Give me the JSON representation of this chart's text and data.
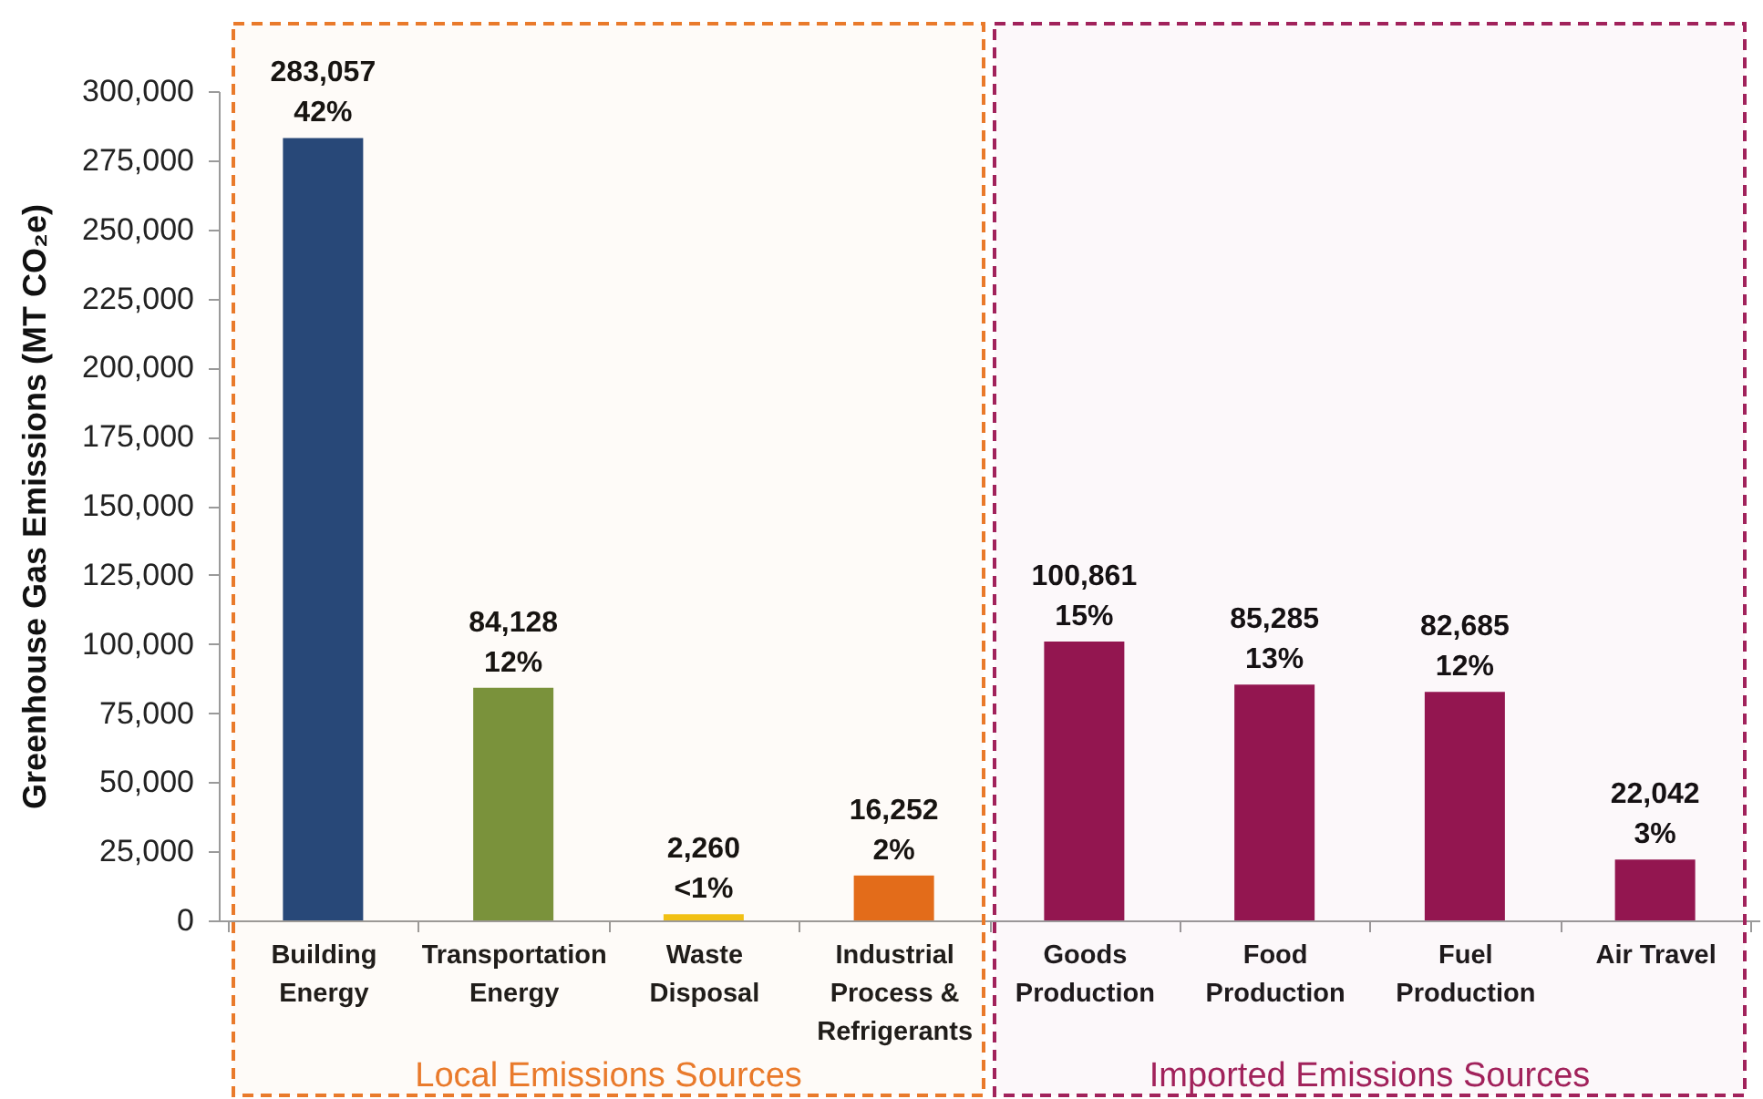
{
  "chart_data": {
    "type": "bar",
    "ylabel": "Greenhouse Gas Emissions (MT CO₂e)",
    "categories": [
      "Building Energy",
      "Transportation Energy",
      "Waste Disposal",
      "Industrial Process & Refrigerants",
      "Goods Production",
      "Food Production",
      "Fuel Production",
      "Air Travel"
    ],
    "values": [
      283057,
      84128,
      2260,
      16252,
      100861,
      85285,
      82685,
      22042
    ],
    "colors": [
      "#23477b",
      "#77933c",
      "#f2c314",
      "#e46c1a",
      "#931650",
      "#931650",
      "#931650",
      "#931650"
    ],
    "value_labels": [
      "283,057\n42%",
      "84,128\n12%",
      "2,260\n<1%",
      "16,252\n2%",
      "100,861\n15%",
      "85,285\n13%",
      "82,685\n12%",
      "22,042\n3%"
    ],
    "ylim": [
      0,
      300000
    ],
    "yticks": [
      0,
      {
        "value": 25000,
        "label": "25,000"
      },
      {
        "value": 50000,
        "label": "50,000"
      },
      {
        "value": 75000,
        "label": "75,000"
      },
      {
        "value": 100000,
        "label": "100,000"
      },
      {
        "value": 125000,
        "label": "125,000"
      },
      {
        "value": 150000,
        "label": "150,000"
      },
      {
        "value": 175000,
        "label": "175,000"
      },
      {
        "value": 200000,
        "label": "200,000"
      },
      {
        "value": 225000,
        "label": "225,000"
      },
      {
        "value": 250000,
        "label": "250,000"
      },
      {
        "value": 275000,
        "label": "275,000"
      },
      {
        "value": 300000,
        "label": "300,000"
      }
    ],
    "bands": [
      {
        "axis": "x",
        "from": "Building Energy",
        "to": "Industrial Process & Refrigerants",
        "label": "Local Emissions Sources",
        "color": "#e97a2b"
      },
      {
        "axis": "x",
        "from": "Goods Production",
        "to": "Air Travel",
        "label": "Imported Emissions Sources",
        "color": "#a1225b"
      }
    ]
  }
}
